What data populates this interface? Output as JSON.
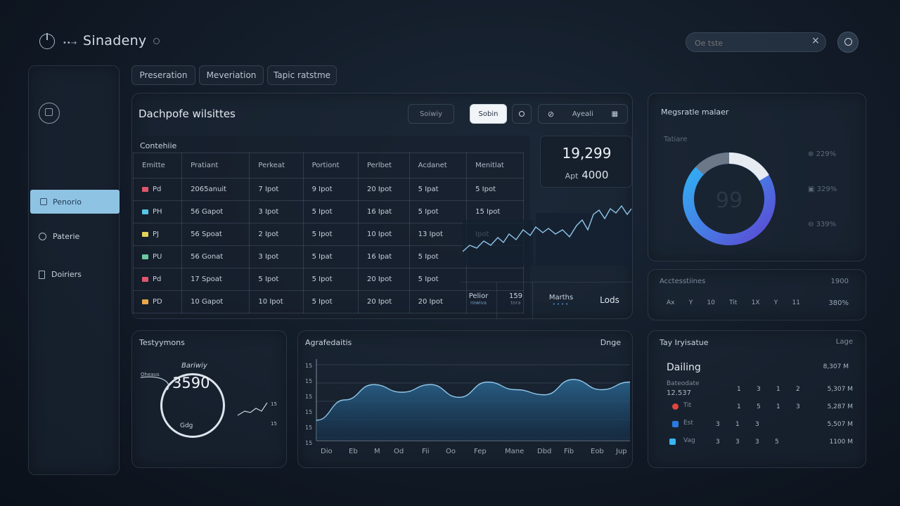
{
  "app": {
    "title": "Sinadeny"
  },
  "search": {
    "placeholder": "Oe tste"
  },
  "tabs": [
    {
      "label": "Preseration"
    },
    {
      "label": "Meveriation"
    },
    {
      "label": "Tapic ratstme"
    }
  ],
  "sidebar": {
    "items": [
      {
        "label": "Penorio",
        "active": true
      },
      {
        "label": "Paterie"
      },
      {
        "label": "Doiriers"
      }
    ]
  },
  "main_panel": {
    "title": "Dachpofe wilsittes",
    "toolbar": {
      "btn1": "Soiwiy",
      "btn2": "Sobin",
      "btn4": "Ayeali"
    },
    "table": {
      "caption": "Contehiie",
      "headers": [
        "Emitte",
        "Pratiant",
        "Perkeat",
        "Portiont",
        "Perlbet",
        "Acdanet",
        "Menitlat"
      ],
      "rows": [
        {
          "flag": "#e0566a",
          "cells": [
            "Pd",
            "2065anuit",
            "7 Ipot",
            "9 Ipot",
            "20 Ipot",
            "5 Ipat",
            "5 Ipot"
          ]
        },
        {
          "flag": "#55c6e6",
          "cells": [
            "PH",
            "56 Gapot",
            "3 Ipot",
            "5 Ipot",
            "16 Ipat",
            "5 Ipot",
            "15 Ipot"
          ]
        },
        {
          "flag": "#e3d15a",
          "cells": [
            "PJ",
            "56 Spoat",
            "2 Ipot",
            "5 Ipot",
            "10 Ipot",
            "13 Ipot",
            "Ipot"
          ]
        },
        {
          "flag": "#6ac9a4",
          "cells": [
            "PU",
            "56 Gonat",
            "3 Ipot",
            "5 Ipat",
            "16 Ipat",
            "5 Ipot",
            ""
          ]
        },
        {
          "flag": "#e0566a",
          "cells": [
            "Pd",
            "17 Spoat",
            "5 Ipot",
            "5 Ipot",
            "20 Ipot",
            "5 Ipot",
            ""
          ]
        },
        {
          "flag": "#e8a64a",
          "cells": [
            "PD",
            "10 Gapot",
            "10 Ipot",
            "5 Ipot",
            "20 Ipot",
            "20 Ipot",
            ""
          ]
        }
      ]
    },
    "stat": {
      "value": "19,299",
      "label": "Apt",
      "sub": "4000"
    },
    "mini_stats": [
      {
        "label": "Pelior",
        "sub": "rowiva"
      },
      {
        "label": "159",
        "sub": "tora"
      },
      {
        "label": "Marths",
        "sub": ""
      },
      {
        "label": "Lods",
        "sub": ""
      }
    ]
  },
  "donut_panel": {
    "title": "Megsratle malaer",
    "subtitle": "Tatiare",
    "center": "99",
    "legend": [
      {
        "label": "229%"
      },
      {
        "label": "329%"
      },
      {
        "label": "339%"
      }
    ],
    "colors": {
      "blue": "#2aa0f0",
      "purple": "#5d4fd6",
      "white": "#e6ebf2",
      "gray": "#6c7888"
    }
  },
  "acc_panel": {
    "title": "Acctesstiines",
    "value": "1900",
    "items": [
      "Ax",
      "Y",
      "10",
      "Tit",
      "1X",
      "Y",
      "11"
    ],
    "last": "380%"
  },
  "testy_panel": {
    "title": "Testyymons",
    "gauge_label": "Bariwiy",
    "value": "3590",
    "bottom": "Gdg",
    "left_label": "Oheaus",
    "spark_top": "15",
    "spark_bottom": "15"
  },
  "chart_panel": {
    "title": "Agrafedaitis",
    "corner": "Dnge",
    "y_ticks": [
      "15",
      "15",
      "15",
      "15",
      "15",
      "15"
    ],
    "x_ticks": [
      "Dio",
      "Eb",
      "M",
      "Od",
      "Fii",
      "Oo",
      "Fep",
      "Mane",
      "Dbd",
      "Fib",
      "Eob",
      "Jup"
    ]
  },
  "chart_data": {
    "type": "area",
    "categories": [
      "Dio",
      "Eb",
      "M",
      "Od",
      "Fii",
      "Oo",
      "Fep",
      "Mane",
      "Dbd",
      "Fib",
      "Eob",
      "Jup"
    ],
    "series": [
      {
        "values": [
          4,
          8,
          11,
          9.5,
          11,
          8.5,
          11.5,
          10,
          9,
          12,
          10,
          11.5
        ]
      }
    ],
    "ylim": [
      0,
      16
    ]
  },
  "top_panel": {
    "title": "Tay Iryisatue",
    "corner": "Lage",
    "heading": "Dailing",
    "heading_value": "8,307 M",
    "rows": [
      {
        "label": "Bateodate",
        "sub": "12.537",
        "cols": [
          "1",
          "3",
          "1",
          "2"
        ],
        "value": "5,307 M",
        "color": ""
      },
      {
        "label": "Tit",
        "sub": "",
        "cols": [
          "1",
          "5",
          "1",
          "3"
        ],
        "value": "5,287 M",
        "color": "#e0463e"
      },
      {
        "label": "Est",
        "sub": "",
        "cols": [
          "3",
          "1",
          "3",
          ""
        ],
        "value": "5,507 M",
        "color": "#2a7ae0"
      },
      {
        "label": "Vag",
        "sub": "",
        "cols": [
          "3",
          "3",
          "3",
          "5"
        ],
        "value": "1100 M",
        "color": "#39b5ef"
      }
    ]
  }
}
